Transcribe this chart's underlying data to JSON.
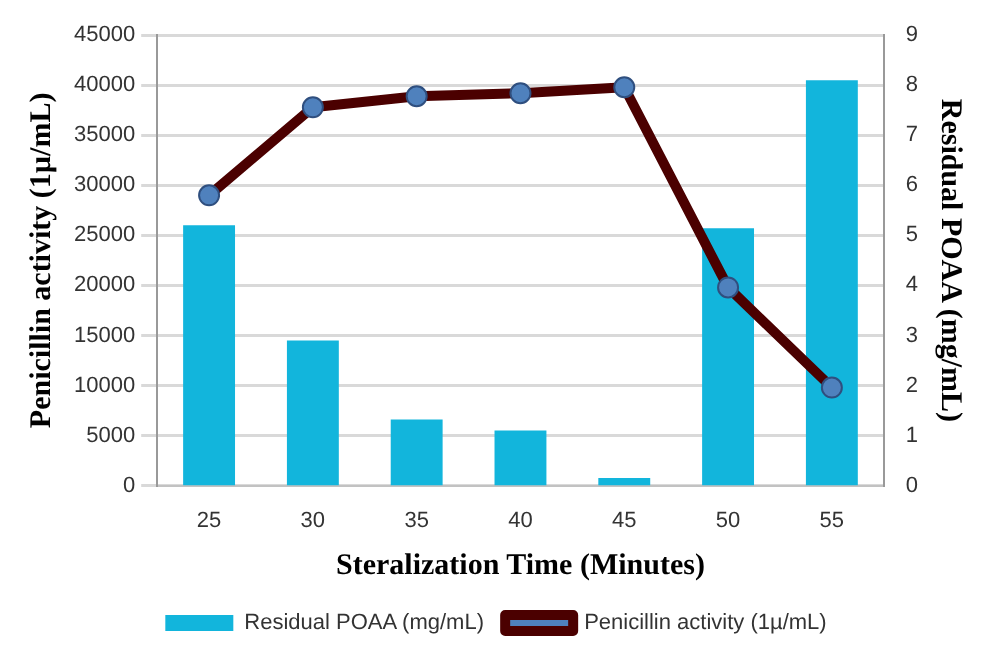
{
  "chart_data": {
    "type": "bar",
    "xlabel": "Steralization Time (Minutes)",
    "ylabel": "Penicillin activity (1µ/mL)",
    "y2label": "Residual POAA (mg/mL)",
    "categories": [
      "25",
      "30",
      "35",
      "40",
      "45",
      "50",
      "55"
    ],
    "series": [
      {
        "name": "Residual POAA (mg/mL)",
        "axis": "y2",
        "color": "#12b5dc",
        "values": [
          5.2,
          2.9,
          1.32,
          1.1,
          0.15,
          5.14,
          8.1
        ]
      },
      {
        "name": "Penicillin activity (1µ/mL)",
        "type": "line",
        "axis": "y",
        "color": "#4b0000",
        "marker": "circle",
        "values": [
          29000,
          37800,
          38900,
          39200,
          39800,
          19800,
          9800
        ]
      }
    ],
    "ylim": [
      0,
      45000
    ],
    "yticks": [
      0,
      5000,
      10000,
      15000,
      20000,
      25000,
      30000,
      35000,
      40000,
      45000
    ],
    "y2lim": [
      0,
      9
    ],
    "y2ticks": [
      0,
      1,
      2,
      3,
      4,
      5,
      6,
      7,
      8,
      9
    ],
    "grid": "y",
    "legend": "bottom"
  }
}
